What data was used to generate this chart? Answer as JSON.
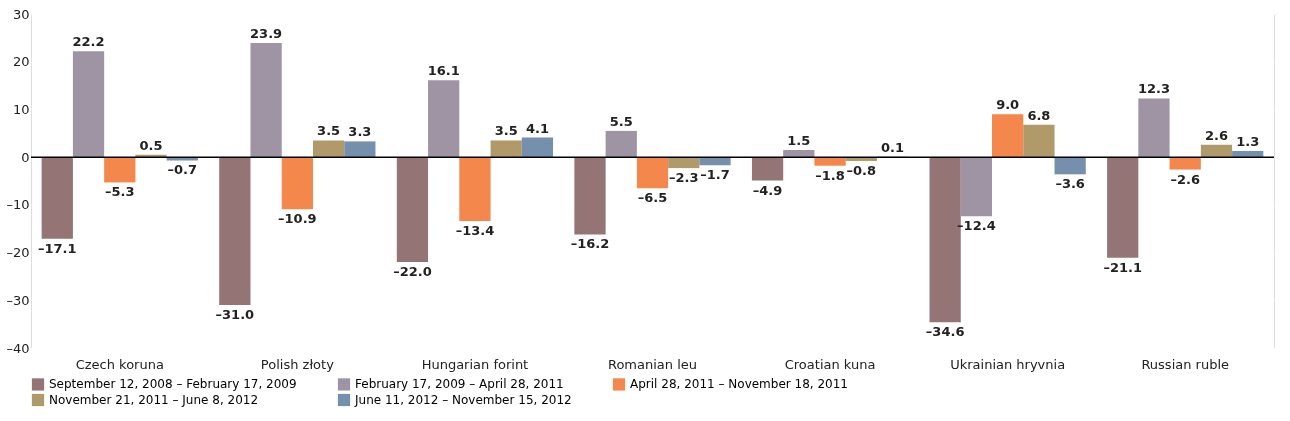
{
  "chart_data": {
    "type": "bar",
    "categories": [
      "Czech koruna",
      "Polish złoty",
      "Hungarian forint",
      "Romanian leu",
      "Croatian kuna",
      "Ukrainian hryvnia",
      "Russian ruble"
    ],
    "series": [
      {
        "name": "September 12, 2008 – February 17, 2009",
        "color": "#947474",
        "values": [
          -17.1,
          -31.0,
          -22.0,
          -16.2,
          -4.9,
          -34.6,
          -21.1
        ],
        "value_labels": [
          "–17.1",
          "–31.0",
          "–22.0",
          "–16.2",
          "–4.9",
          "–34.6",
          "–21.1"
        ]
      },
      {
        "name": "February 17, 2009 – April 28, 2011",
        "color": "#9e94a3",
        "values": [
          22.2,
          23.9,
          16.1,
          5.5,
          1.5,
          -12.4,
          12.3
        ],
        "value_labels": [
          "22.2",
          "23.9",
          "16.1",
          "5.5",
          "1.5",
          "–12.4",
          "12.3"
        ]
      },
      {
        "name": "April 28, 2011 – November 18, 2011",
        "color": "#f4874b",
        "values": [
          -5.3,
          -10.9,
          -13.4,
          -6.5,
          -1.8,
          9.0,
          -2.6
        ],
        "value_labels": [
          "–5.3",
          "–10.9",
          "–13.4",
          "–6.5",
          "–1.8",
          "9.0",
          "–2.6"
        ]
      },
      {
        "name": "November 21, 2011 – June 8, 2012",
        "color": "#b09a6a",
        "values": [
          0.5,
          3.5,
          3.5,
          -2.3,
          -0.8,
          6.8,
          2.6
        ],
        "value_labels": [
          "0.5",
          "3.5",
          "3.5",
          "–2.3",
          "–0.8",
          "6.8",
          "2.6"
        ]
      },
      {
        "name": "June 11, 2012 – November 15, 2012",
        "color": "#7590ac",
        "values": [
          -0.7,
          3.3,
          4.1,
          -1.7,
          0.1,
          -3.6,
          1.3
        ],
        "value_labels": [
          "–0.7",
          "3.3",
          "4.1",
          "–1.7",
          "0.1",
          "–3.6",
          "1.3"
        ]
      }
    ],
    "ylim": [
      -40,
      30
    ],
    "yticks": [
      30,
      20,
      10,
      0,
      {
        "value": -10,
        "label": "–10"
      },
      {
        "value": -20,
        "label": "–20"
      },
      {
        "value": -30,
        "label": "–30"
      },
      {
        "value": -40,
        "label": "–40"
      }
    ],
    "grid": true,
    "legend": "bottom"
  }
}
